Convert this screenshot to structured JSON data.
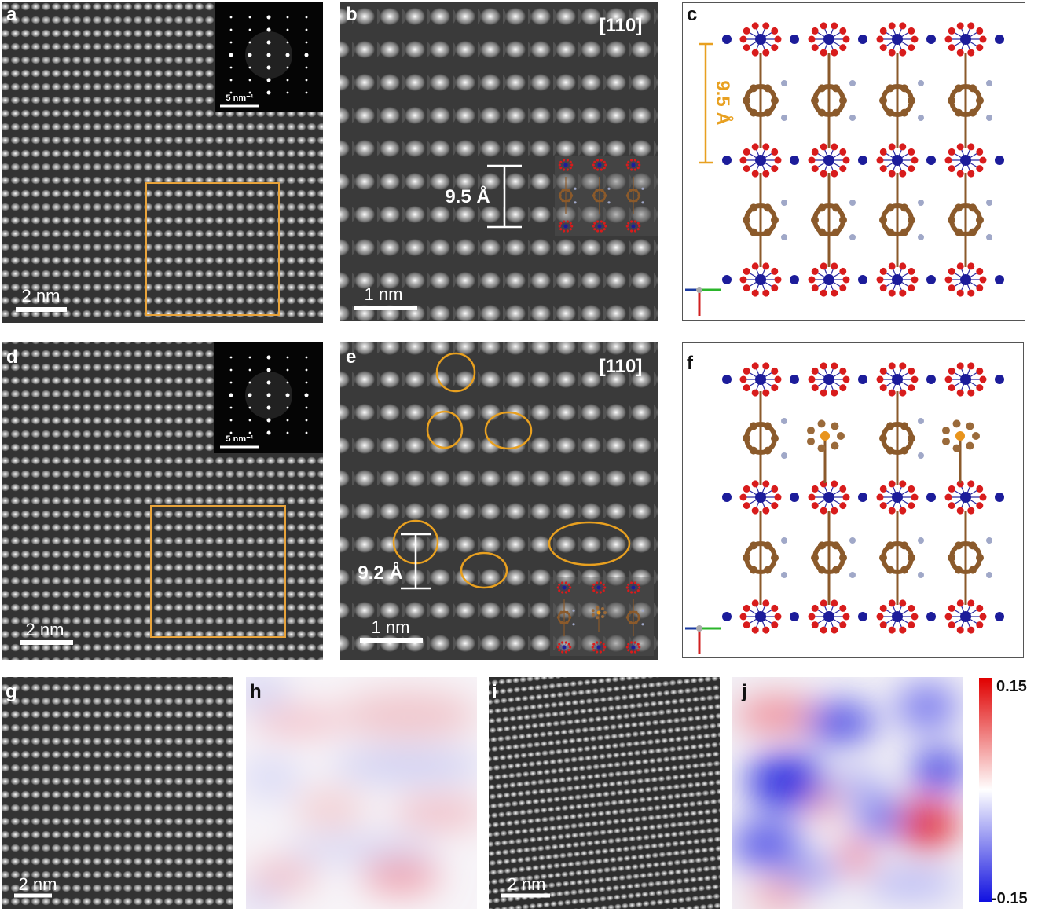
{
  "panels": [
    {
      "label": "a",
      "scale_bar": "2 nm",
      "inset_scale_bar": "5 nm⁻¹"
    },
    {
      "label": "b",
      "zone_axis": "[110]",
      "spacing": "9.5 Å",
      "scale_bar": "1 nm"
    },
    {
      "label": "c",
      "spacing": "9.5 Å"
    },
    {
      "label": "d",
      "scale_bar": "2 nm",
      "inset_scale_bar": "5 nm⁻¹"
    },
    {
      "label": "e",
      "zone_axis": "[110]",
      "spacing": "9.2 Å",
      "scale_bar": "1 nm"
    },
    {
      "label": "f"
    },
    {
      "label": "g",
      "scale_bar": "2 nm"
    },
    {
      "label": "h"
    },
    {
      "label": "i",
      "scale_bar": "2 nm"
    },
    {
      "label": "j"
    }
  ],
  "colorbar": {
    "max": "0.15",
    "min": "-0.15"
  }
}
